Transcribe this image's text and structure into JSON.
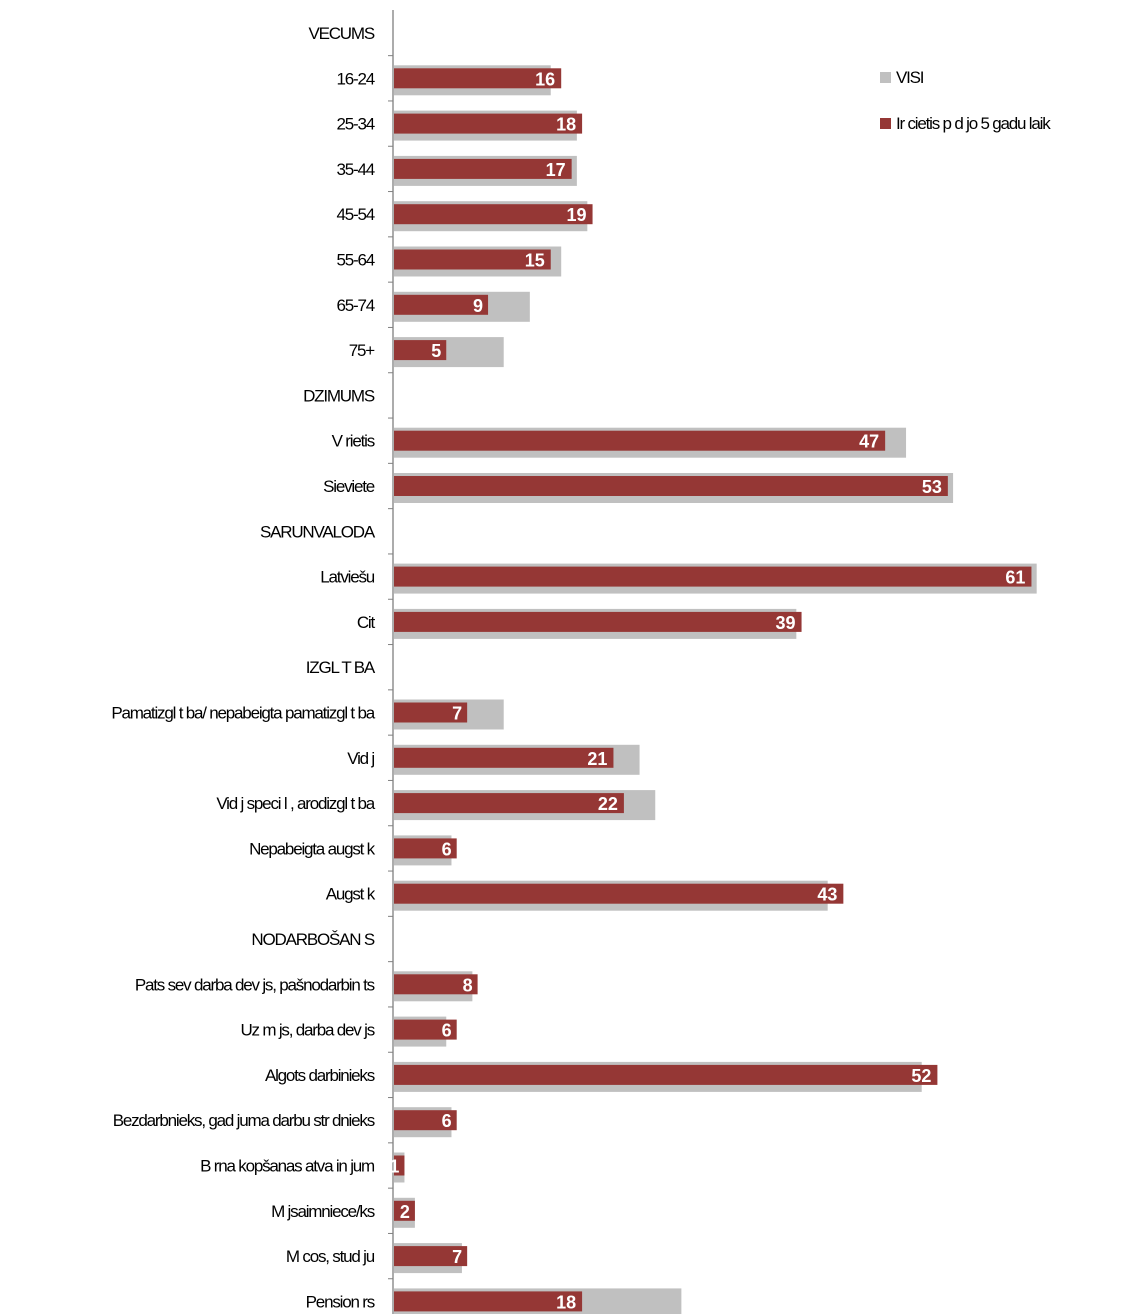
{
  "chart_data": {
    "type": "bar",
    "orientation": "horizontal",
    "xlim": [
      0,
      70
    ],
    "grid": false,
    "legend_position": "top-right",
    "series_colors": {
      "total": "#c0c0c0",
      "subgroup": "#953735"
    },
    "legend": [
      {
        "label": "VISI",
        "color": "#c0c0c0"
      },
      {
        "label": "Ir cietis p  d  jo 5  gadu laik",
        "color": "#953735"
      }
    ],
    "categories": [
      {
        "label": "VECUMS",
        "header": true
      },
      {
        "label": "16-24",
        "total": 15,
        "value": 16
      },
      {
        "label": "25-34",
        "total": 17.5,
        "value": 18
      },
      {
        "label": "35-44",
        "total": 17.5,
        "value": 17
      },
      {
        "label": "45-54",
        "total": 18.5,
        "value": 19
      },
      {
        "label": "55-64",
        "total": 16,
        "value": 15
      },
      {
        "label": "65-74",
        "total": 13,
        "value": 9
      },
      {
        "label": "75+",
        "total": 10.5,
        "value": 5
      },
      {
        "label": "DZIMUMS",
        "header": true
      },
      {
        "label": "V rietis",
        "total": 49,
        "value": 47
      },
      {
        "label": "Sieviete",
        "total": 53.5,
        "value": 53
      },
      {
        "label": "SARUNVALODA",
        "header": true
      },
      {
        "label": "Latviešu",
        "total": 61.5,
        "value": 61
      },
      {
        "label": "Cit",
        "total": 38.5,
        "value": 39
      },
      {
        "label": "IZGL T BA",
        "header": true
      },
      {
        "label": "Pamatizgl t ba/ nepabeigta pamatizgl t ba",
        "total": 10.5,
        "value": 7
      },
      {
        "label": "Vid j",
        "total": 23.5,
        "value": 21
      },
      {
        "label": "Vid j  speci  l , arodizgl t ba",
        "total": 25,
        "value": 22
      },
      {
        "label": "Nepabeigta augst  k",
        "total": 5.5,
        "value": 6
      },
      {
        "label": "Augst  k",
        "total": 41.5,
        "value": 43
      },
      {
        "label": "NODARBOŠAN  S",
        "header": true
      },
      {
        "label": "Pats sev darba dev  js, pašnodarbin  ts",
        "total": 7.5,
        "value": 8
      },
      {
        "label": "Uz    m  js, darba dev  js",
        "total": 5,
        "value": 6
      },
      {
        "label": "Algots darbinieks",
        "total": 50.5,
        "value": 52
      },
      {
        "label": "Bezdarbnieks, gad juma darbu str  dnieks",
        "total": 5.5,
        "value": 6
      },
      {
        "label": "B  rna kopšanas atva in  jum",
        "total": 1,
        "value": 1
      },
      {
        "label": "M  jsaimniece/ks",
        "total": 2,
        "value": 2
      },
      {
        "label": "M  cos, stud  ju",
        "total": 6.5,
        "value": 7
      },
      {
        "label": "Pension  rs",
        "total": 27.5,
        "value": 18
      }
    ]
  }
}
